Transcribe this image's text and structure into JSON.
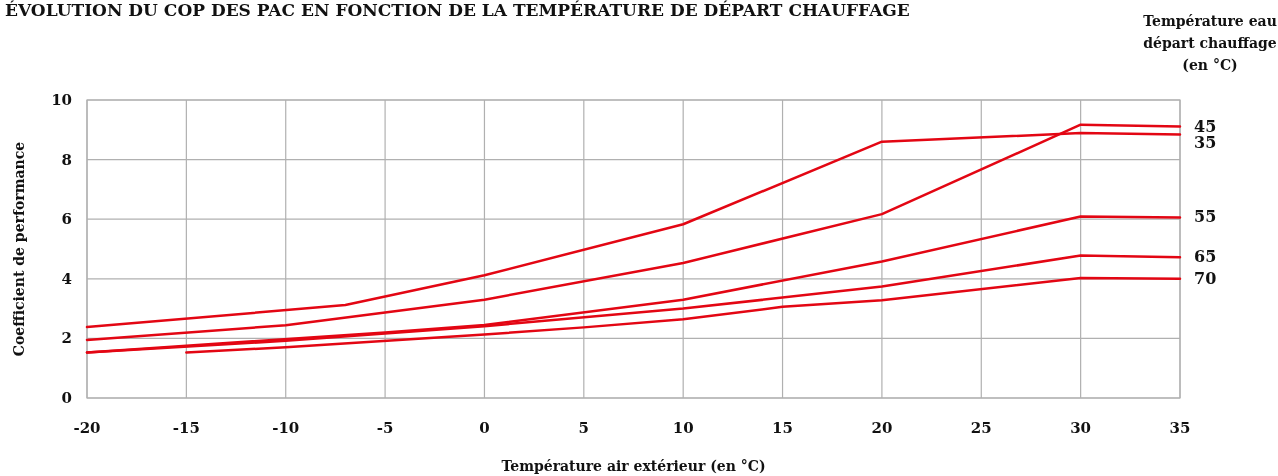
{
  "chart_data": {
    "type": "line",
    "title": "ÉVOLUTION DU COP DES PAC EN FONCTION DE LA TEMPÉRATURE DE DÉPART CHAUFFAGE",
    "xlabel": "Température air extérieur (en °C)",
    "ylabel": "Coefficient de performance",
    "legend_title": "Température eau départ chauffage (en °C)",
    "xlim": [
      -20,
      35
    ],
    "xticks": [
      -20,
      -15,
      -10,
      -5,
      0,
      5,
      10,
      15,
      20,
      25,
      30,
      35
    ],
    "ylim": [
      0,
      10
    ],
    "yticks": [
      0,
      2,
      4,
      6,
      8,
      10
    ],
    "grid": true,
    "series": [
      {
        "name": "35",
        "color": "#e30613",
        "x": [
          -20,
          -7,
          0,
          10,
          20,
          30,
          35
        ],
        "values": [
          2.38,
          3.12,
          4.12,
          5.83,
          8.6,
          8.89,
          8.84
        ]
      },
      {
        "name": "45",
        "color": "#e30613",
        "x": [
          -20,
          -10,
          0,
          10,
          20,
          30,
          35
        ],
        "values": [
          1.95,
          2.44,
          3.3,
          4.53,
          6.17,
          9.17,
          9.11
        ]
      },
      {
        "name": "55",
        "color": "#e30613",
        "x": [
          -20,
          -5,
          0,
          10,
          20,
          30,
          35
        ],
        "values": [
          1.53,
          2.2,
          2.45,
          3.3,
          4.58,
          6.09,
          6.06
        ]
      },
      {
        "name": "65",
        "color": "#e30613",
        "x": [
          -20,
          -10,
          0,
          10,
          20,
          30,
          35
        ],
        "values": [
          1.53,
          1.92,
          2.41,
          3.0,
          3.74,
          4.78,
          4.72
        ]
      },
      {
        "name": "70",
        "color": "#e30613",
        "x": [
          -15,
          -10,
          0,
          5,
          10,
          15,
          20,
          30,
          35
        ],
        "values": [
          1.53,
          1.7,
          2.13,
          2.37,
          2.64,
          3.06,
          3.28,
          4.03,
          4.0
        ]
      }
    ]
  }
}
